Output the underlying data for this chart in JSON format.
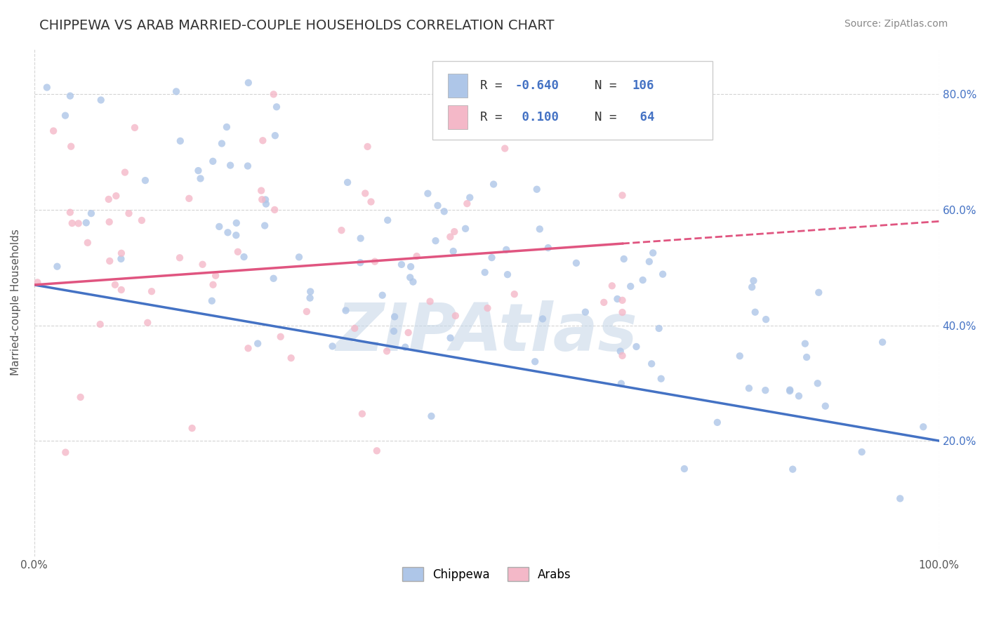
{
  "title": "CHIPPEWA VS ARAB MARRIED-COUPLE HOUSEHOLDS CORRELATION CHART",
  "source_text": "Source: ZipAtlas.com",
  "ylabel": "Married-couple Households",
  "watermark": "ZIPAtlas",
  "legend_items": [
    {
      "R": -0.64,
      "N": 106,
      "color": "#aec6e8",
      "line_color": "#4472c4"
    },
    {
      "R": 0.1,
      "N": 64,
      "color": "#f4b8c8",
      "line_color": "#e05580"
    }
  ],
  "xlim": [
    0.0,
    1.0
  ],
  "ylim": [
    0.0,
    0.88
  ],
  "xtick_positions": [
    0.0,
    1.0
  ],
  "xtick_labels": [
    "0.0%",
    "100.0%"
  ],
  "ytick_values": [
    0.2,
    0.4,
    0.6,
    0.8
  ],
  "ytick_labels": [
    "20.0%",
    "40.0%",
    "60.0%",
    "80.0%"
  ],
  "grid_color": "#d0d0d0",
  "background_color": "#ffffff",
  "title_color": "#333333",
  "title_fontsize": 14,
  "scatter_alpha": 0.8,
  "dot_size": 55,
  "chippewa_color": "#aec6e8",
  "arab_color": "#f4b8c8",
  "line_blue_color": "#4472c4",
  "line_pink_color": "#e05580",
  "chip_seed": 7,
  "arab_seed": 13,
  "watermark_color": "#c8d8e8",
  "watermark_alpha": 0.6,
  "watermark_fontsize": 68
}
